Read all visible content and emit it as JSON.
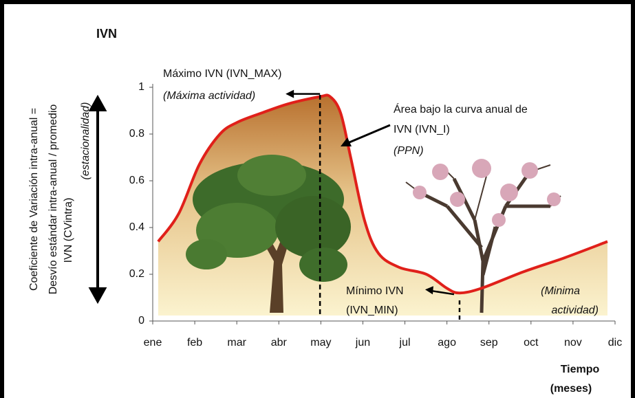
{
  "chart_data": {
    "type": "area",
    "title": "IVN",
    "ylabel": [
      "Coeficiente de Variación intra-anual =",
      "Desvío estándar intra-anual / promedio",
      "IVN (CVintra)"
    ],
    "ylabel_note": "(estacionalidad)",
    "xlabel": [
      "Tiempo",
      "(meses)"
    ],
    "x": [
      0.13,
      0.62,
      1.11,
      1.6,
      2.01,
      2.59,
      3.24,
      3.98,
      4.22,
      4.47,
      4.71,
      5.04,
      5.37,
      5.86,
      6.51,
      7.0,
      7.3,
      7.82,
      8.81,
      9.79,
      10.82
    ],
    "values": [
      0.34,
      0.46,
      0.67,
      0.8,
      0.85,
      0.89,
      0.93,
      0.96,
      0.96,
      0.89,
      0.7,
      0.43,
      0.29,
      0.23,
      0.2,
      0.14,
      0.12,
      0.14,
      0.21,
      0.27,
      0.34
    ],
    "color": "#e0201a",
    "xlim": [
      0,
      11
    ],
    "xticks": [
      {
        "value": 0,
        "label": "ene"
      },
      {
        "value": 1,
        "label": "feb"
      },
      {
        "value": 2,
        "label": "mar"
      },
      {
        "value": 3,
        "label": "abr"
      },
      {
        "value": 4,
        "label": "may"
      },
      {
        "value": 5,
        "label": "jun"
      },
      {
        "value": 6,
        "label": "jul"
      },
      {
        "value": 7,
        "label": "ago"
      },
      {
        "value": 8,
        "label": "sep"
      },
      {
        "value": 9,
        "label": "oct"
      },
      {
        "value": 10,
        "label": "nov"
      },
      {
        "value": 11,
        "label": "dic"
      }
    ],
    "ylim": [
      0,
      1
    ],
    "yticks": [
      0,
      0.2,
      0.4,
      0.6,
      0.8,
      1
    ],
    "annotations": [
      {
        "lines": [
          "Máximo IVN (IVN_MAX)",
          "(Máxima actividad)"
        ]
      },
      {
        "lines": [
          "Área bajo la curva anual de",
          "IVN (IVN_I)",
          "(PPN)"
        ]
      },
      {
        "lines": [
          "Mínimo IVN",
          "(IVN_MIN)"
        ]
      },
      {
        "lines": [
          "(Minima",
          "actividad)"
        ]
      }
    ]
  }
}
